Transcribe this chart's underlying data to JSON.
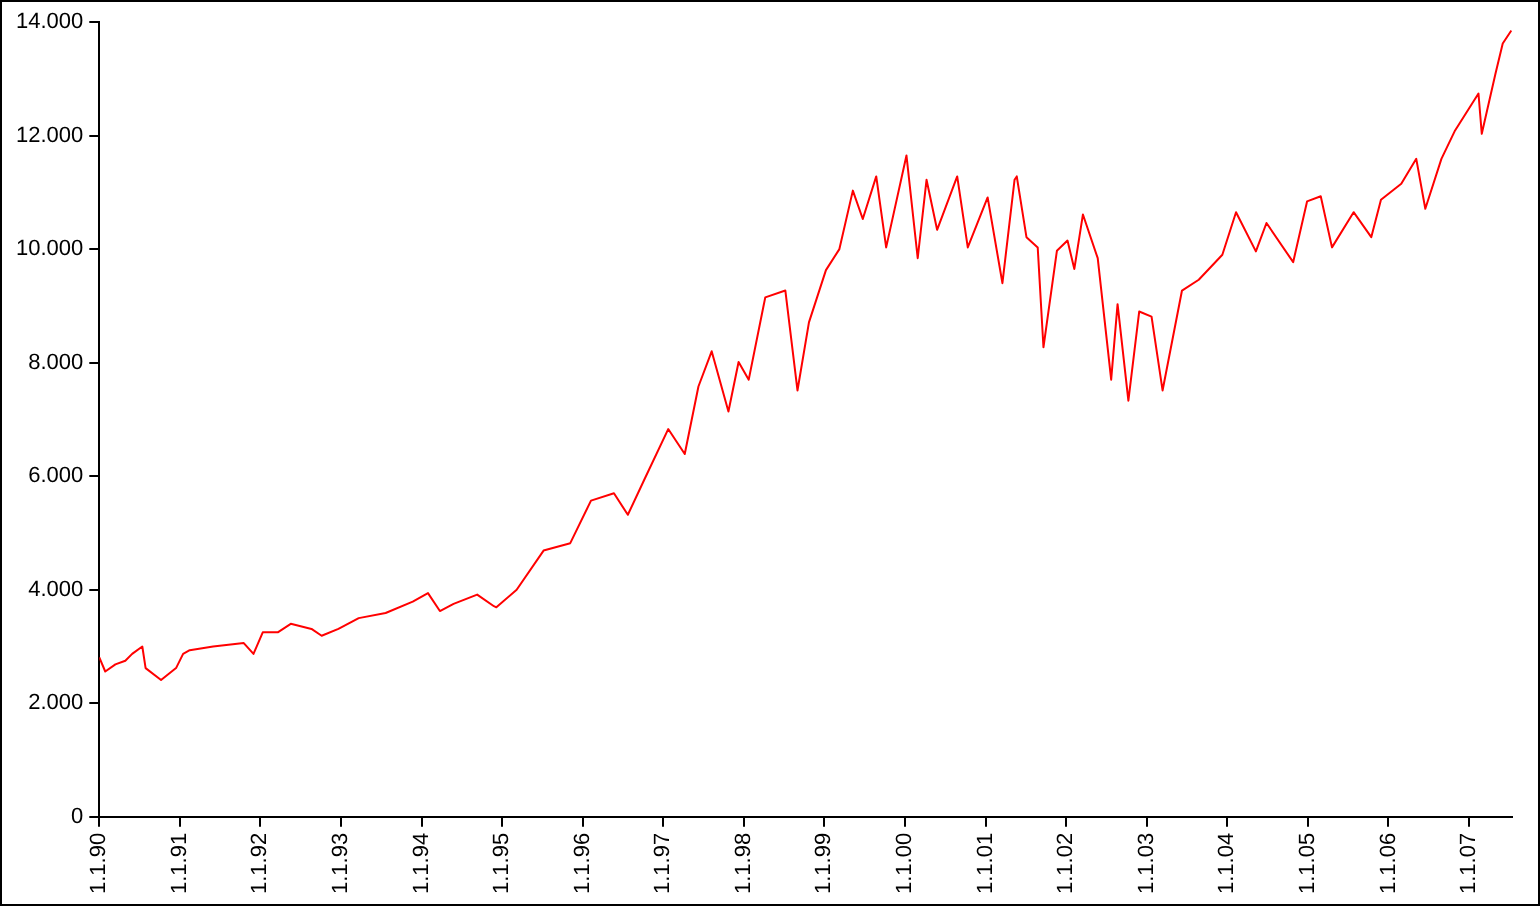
{
  "chart_data": {
    "type": "line",
    "x": [
      "1990-01-01",
      "1990-01-28",
      "1990-03-15",
      "1990-04-29",
      "1990-05-30",
      "1990-07-15",
      "1990-07-30",
      "1990-10-08",
      "1990-12-15",
      "1991-01-16",
      "1991-02-15",
      "1991-06-01",
      "1991-10-18",
      "1991-12-01",
      "1992-01-12",
      "1992-03-20",
      "1992-05-18",
      "1992-08-20",
      "1992-10-05",
      "1992-12-20",
      "1993-03-22",
      "1993-07-22",
      "1993-11-22",
      "1994-01-30",
      "1994-03-25",
      "1994-05-26",
      "1994-09-10",
      "1994-11-25",
      "1994-12-06",
      "1995-03-08",
      "1995-07-08",
      "1995-11-06",
      "1996-02-08",
      "1996-05-22",
      "1996-07-24",
      "1996-10-08",
      "1997-01-23",
      "1997-04-08",
      "1997-06-09",
      "1997-08-08",
      "1997-10-23",
      "1997-12-08",
      "1998-01-23",
      "1998-04-08",
      "1998-07-08",
      "1998-09-01",
      "1998-10-23",
      "1999-01-08",
      "1999-03-10",
      "1999-05-10",
      "1999-06-24",
      "1999-08-24",
      "1999-10-08",
      "2000-01-08",
      "2000-02-28",
      "2000-04-08",
      "2000-05-26",
      "2000-08-25",
      "2000-10-12",
      "2001-01-10",
      "2001-03-18",
      "2001-05-12",
      "2001-05-22",
      "2001-07-05",
      "2001-08-25",
      "2001-09-20",
      "2001-11-20",
      "2002-01-07",
      "2002-02-07",
      "2002-03-18",
      "2002-05-24",
      "2002-07-24",
      "2002-08-22",
      "2002-10-10",
      "2002-11-28",
      "2003-01-23",
      "2003-03-14",
      "2003-06-10",
      "2003-08-25",
      "2003-12-10",
      "2004-02-10",
      "2004-05-10",
      "2004-06-27",
      "2004-10-26",
      "2004-12-28",
      "2005-02-28",
      "2005-04-20",
      "2005-07-27",
      "2005-10-15",
      "2005-11-28",
      "2006-02-28",
      "2006-05-07",
      "2006-06-17",
      "2006-08-29",
      "2006-10-30",
      "2007-02-13",
      "2007-02-28",
      "2007-05-01",
      "2007-06-03",
      "2007-07-12"
    ],
    "series": [
      {
        "color": "#ff0000",
        "values": [
          2810,
          2560,
          2685,
          2750,
          2870,
          3000,
          2620,
          2410,
          2620,
          2870,
          2935,
          3000,
          3060,
          2870,
          3250,
          3250,
          3400,
          3310,
          3190,
          3310,
          3500,
          3590,
          3790,
          3940,
          3625,
          3750,
          3915,
          3710,
          3690,
          4000,
          4690,
          4820,
          5570,
          5700,
          5320,
          5950,
          6830,
          6390,
          7580,
          8200,
          7140,
          8010,
          7700,
          9150,
          9270,
          7510,
          8710,
          9630,
          10000,
          11030,
          10530,
          11280,
          10030,
          11650,
          9840,
          11220,
          10340,
          11280,
          10030,
          10910,
          9400,
          11220,
          11280,
          10210,
          10030,
          8270,
          9970,
          10150,
          9650,
          10610,
          9840,
          7700,
          9030,
          7330,
          8900,
          8810,
          7510,
          9270,
          9460,
          9900,
          10650,
          9960,
          10460,
          9770,
          10840,
          10930,
          10030,
          10650,
          10210,
          10870,
          11150,
          11590,
          10710,
          11590,
          12090,
          12740,
          12030,
          13090,
          13620,
          13850
        ]
      }
    ],
    "xlim": [
      "1990-01-01",
      "2007-07-15"
    ],
    "xticks": [
      {
        "value": "1990-01-01",
        "label": "1.1.90"
      },
      {
        "value": "1991-01-01",
        "label": "1.1.91"
      },
      {
        "value": "1992-01-01",
        "label": "1.1.92"
      },
      {
        "value": "1993-01-01",
        "label": "1.1.93"
      },
      {
        "value": "1994-01-01",
        "label": "1.1.94"
      },
      {
        "value": "1995-01-01",
        "label": "1.1.95"
      },
      {
        "value": "1996-01-01",
        "label": "1.1.96"
      },
      {
        "value": "1997-01-01",
        "label": "1.1.97"
      },
      {
        "value": "1998-01-01",
        "label": "1.1.98"
      },
      {
        "value": "1999-01-01",
        "label": "1.1.99"
      },
      {
        "value": "2000-01-01",
        "label": "1.1.00"
      },
      {
        "value": "2001-01-01",
        "label": "1.1.01"
      },
      {
        "value": "2002-01-01",
        "label": "1.1.02"
      },
      {
        "value": "2003-01-01",
        "label": "1.1.03"
      },
      {
        "value": "2004-01-01",
        "label": "1.1.04"
      },
      {
        "value": "2005-01-01",
        "label": "1.1.05"
      },
      {
        "value": "2006-01-01",
        "label": "1.1.06"
      },
      {
        "value": "2007-01-01",
        "label": "1.1.07"
      }
    ],
    "ylim": [
      0,
      14000
    ],
    "yticks": [
      {
        "value": 0,
        "label": "0"
      },
      {
        "value": 2000,
        "label": "2.000"
      },
      {
        "value": 4000,
        "label": "4.000"
      },
      {
        "value": 6000,
        "label": "6.000"
      },
      {
        "value": 8000,
        "label": "8.000"
      },
      {
        "value": 10000,
        "label": "10.000"
      },
      {
        "value": 12000,
        "label": "12.000"
      },
      {
        "value": 14000,
        "label": "14.000"
      }
    ],
    "grid": false,
    "legend": false,
    "marker": "none",
    "line_style": "solid"
  }
}
